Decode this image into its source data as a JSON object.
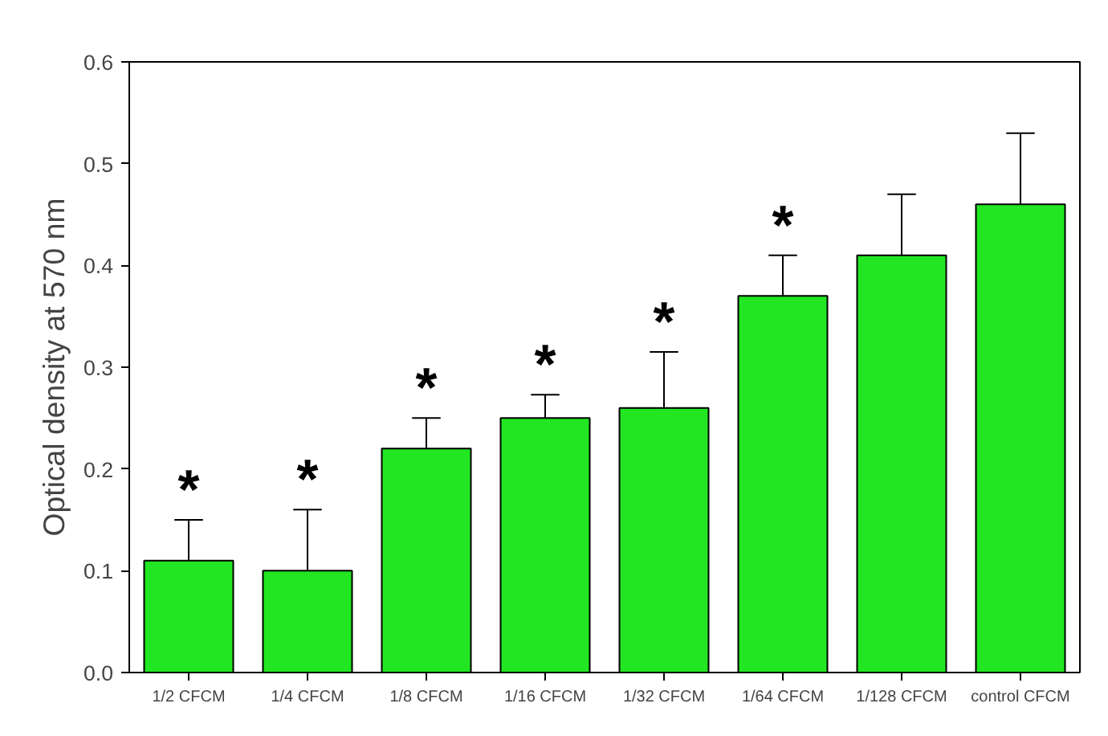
{
  "chart_data": {
    "type": "bar",
    "ylabel": "Optical density at 570 nm",
    "categories": [
      "1/2 CFCM",
      "1/4 CFCM",
      "1/8 CFCM",
      "1/16 CFCM",
      "1/32 CFCM",
      "1/64 CFCM",
      "1/128 CFCM",
      "control CFCM"
    ],
    "values": [
      0.11,
      0.1,
      0.22,
      0.25,
      0.26,
      0.37,
      0.41,
      0.46
    ],
    "errors": [
      0.04,
      0.06,
      0.03,
      0.023,
      0.055,
      0.04,
      0.06,
      0.07
    ],
    "color": "#22e622",
    "ylim": [
      0,
      0.6
    ],
    "yticks": [
      {
        "value": 0,
        "label": "0.0"
      },
      0.1,
      0.2,
      0.3,
      0.4,
      0.5,
      0.6
    ],
    "grid": false,
    "legend": false,
    "annotations": [
      "*",
      "*",
      "*",
      "*",
      "*",
      "*"
    ]
  }
}
